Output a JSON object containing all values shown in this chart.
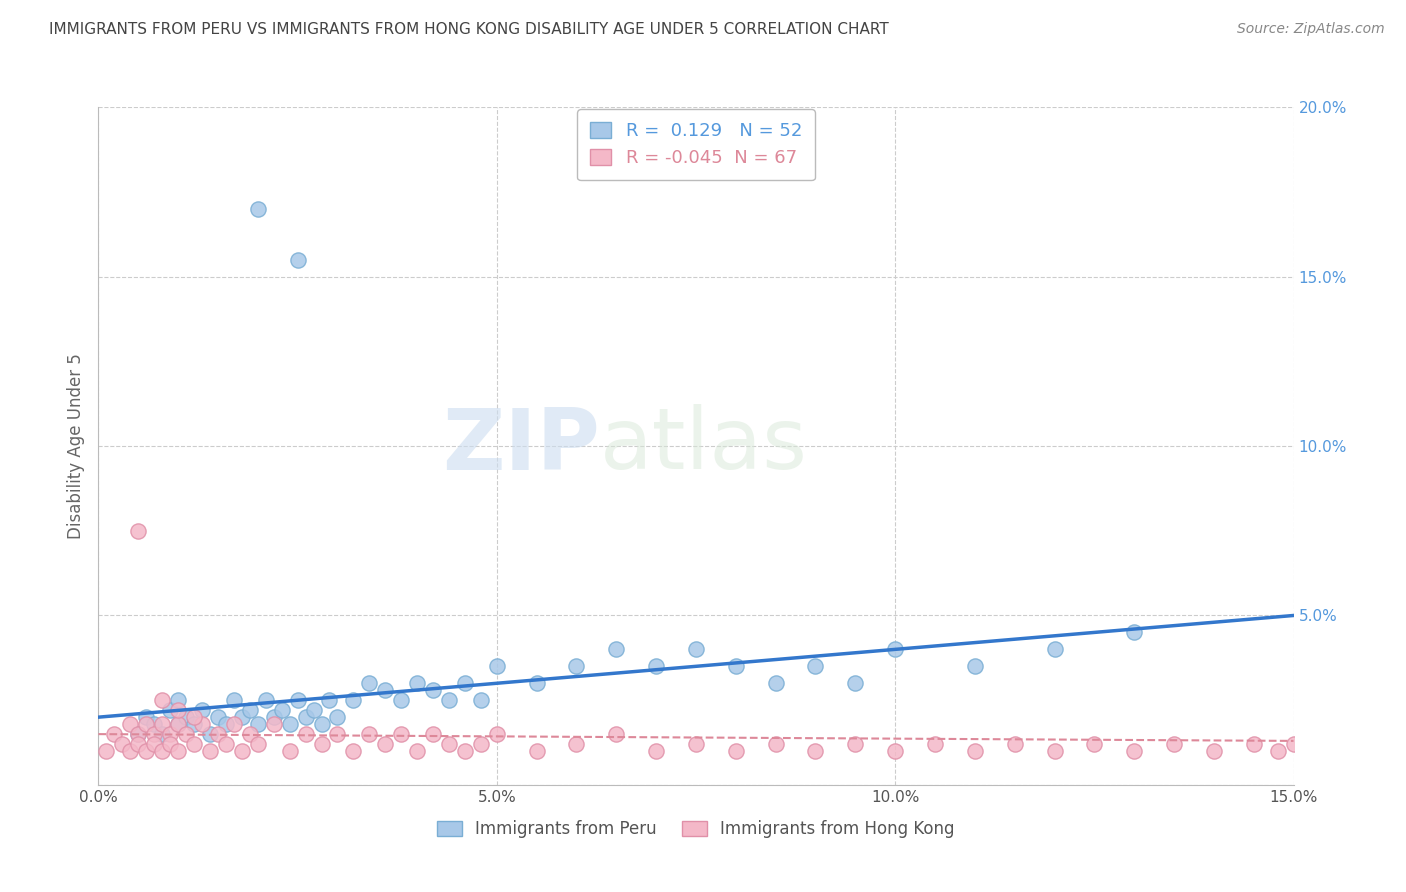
{
  "title": "IMMIGRANTS FROM PERU VS IMMIGRANTS FROM HONG KONG DISABILITY AGE UNDER 5 CORRELATION CHART",
  "source": "Source: ZipAtlas.com",
  "ylabel": "Disability Age Under 5",
  "xlim": [
    0,
    0.15
  ],
  "ylim": [
    0,
    0.2
  ],
  "peru_color": "#a8c8e8",
  "peru_edge_color": "#7aaed4",
  "hongkong_color": "#f4b8c8",
  "hongkong_edge_color": "#e090a8",
  "peru_R": 0.129,
  "peru_N": 52,
  "hongkong_R": -0.045,
  "hongkong_N": 67,
  "watermark_ZIP": "ZIP",
  "watermark_atlas": "atlas",
  "legend_label_peru": "Immigrants from Peru",
  "legend_label_hk": "Immigrants from Hong Kong",
  "background_color": "#ffffff",
  "grid_color": "#cccccc",
  "title_color": "#444444",
  "yaxis_color": "#5599dd",
  "trend_blue": "#3377cc",
  "trend_pink": "#dd8899",
  "peru_x": [
    0.005,
    0.006,
    0.007,
    0.008,
    0.009,
    0.01,
    0.01,
    0.011,
    0.012,
    0.013,
    0.014,
    0.015,
    0.016,
    0.017,
    0.018,
    0.019,
    0.02,
    0.021,
    0.022,
    0.023,
    0.024,
    0.025,
    0.026,
    0.027,
    0.028,
    0.029,
    0.03,
    0.032,
    0.034,
    0.036,
    0.038,
    0.04,
    0.042,
    0.044,
    0.046,
    0.048,
    0.05,
    0.055,
    0.06,
    0.065,
    0.07,
    0.075,
    0.08,
    0.085,
    0.09,
    0.095,
    0.1,
    0.11,
    0.12,
    0.13,
    0.02,
    0.025
  ],
  "peru_y": [
    0.015,
    0.02,
    0.018,
    0.015,
    0.022,
    0.018,
    0.025,
    0.02,
    0.018,
    0.022,
    0.015,
    0.02,
    0.018,
    0.025,
    0.02,
    0.022,
    0.018,
    0.025,
    0.02,
    0.022,
    0.018,
    0.025,
    0.02,
    0.022,
    0.018,
    0.025,
    0.02,
    0.025,
    0.03,
    0.028,
    0.025,
    0.03,
    0.028,
    0.025,
    0.03,
    0.025,
    0.035,
    0.03,
    0.035,
    0.04,
    0.035,
    0.04,
    0.035,
    0.03,
    0.035,
    0.03,
    0.04,
    0.035,
    0.04,
    0.045,
    0.17,
    0.155
  ],
  "hk_x": [
    0.001,
    0.002,
    0.003,
    0.004,
    0.004,
    0.005,
    0.005,
    0.006,
    0.006,
    0.007,
    0.007,
    0.008,
    0.008,
    0.009,
    0.009,
    0.01,
    0.01,
    0.011,
    0.012,
    0.013,
    0.014,
    0.015,
    0.016,
    0.017,
    0.018,
    0.019,
    0.02,
    0.022,
    0.024,
    0.026,
    0.028,
    0.03,
    0.032,
    0.034,
    0.036,
    0.038,
    0.04,
    0.042,
    0.044,
    0.046,
    0.048,
    0.05,
    0.055,
    0.06,
    0.065,
    0.07,
    0.075,
    0.08,
    0.085,
    0.09,
    0.095,
    0.1,
    0.105,
    0.11,
    0.115,
    0.12,
    0.125,
    0.13,
    0.135,
    0.14,
    0.145,
    0.148,
    0.15,
    0.008,
    0.01,
    0.012,
    0.005
  ],
  "hk_y": [
    0.01,
    0.015,
    0.012,
    0.018,
    0.01,
    0.015,
    0.012,
    0.018,
    0.01,
    0.015,
    0.012,
    0.018,
    0.01,
    0.015,
    0.012,
    0.018,
    0.01,
    0.015,
    0.012,
    0.018,
    0.01,
    0.015,
    0.012,
    0.018,
    0.01,
    0.015,
    0.012,
    0.018,
    0.01,
    0.015,
    0.012,
    0.015,
    0.01,
    0.015,
    0.012,
    0.015,
    0.01,
    0.015,
    0.012,
    0.01,
    0.012,
    0.015,
    0.01,
    0.012,
    0.015,
    0.01,
    0.012,
    0.01,
    0.012,
    0.01,
    0.012,
    0.01,
    0.012,
    0.01,
    0.012,
    0.01,
    0.012,
    0.01,
    0.012,
    0.01,
    0.012,
    0.01,
    0.012,
    0.025,
    0.022,
    0.02,
    0.075
  ],
  "trend_blue_start_y": 0.02,
  "trend_blue_end_y": 0.05,
  "trend_pink_y": 0.015
}
